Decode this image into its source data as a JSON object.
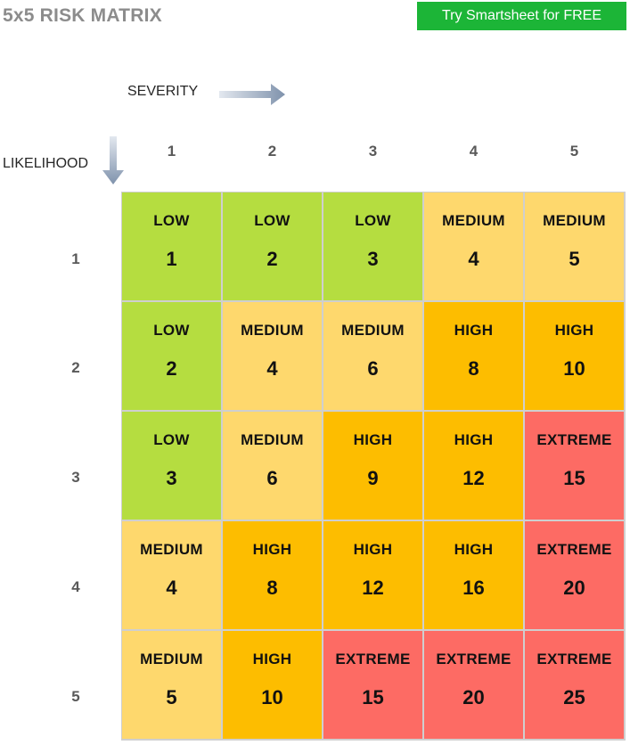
{
  "title": "5x5 RISK MATRIX",
  "cta_label": "Try Smartsheet for FREE",
  "severity_label": "SEVERITY",
  "likelihood_label": "LIKELIHOOD",
  "colors": {
    "LOW": "#b5dd40",
    "MEDIUM": "#fed86d",
    "HIGH": "#fdbd00",
    "EXTREME": "#fd6b64",
    "cta": "#1cb537",
    "arrow": "#7f92ac"
  },
  "severity_values": [
    "1",
    "2",
    "3",
    "4",
    "5"
  ],
  "likelihood_values": [
    "1",
    "2",
    "3",
    "4",
    "5"
  ],
  "matrix": [
    [
      {
        "level": "LOW",
        "score": "1"
      },
      {
        "level": "LOW",
        "score": "2"
      },
      {
        "level": "LOW",
        "score": "3"
      },
      {
        "level": "MEDIUM",
        "score": "4"
      },
      {
        "level": "MEDIUM",
        "score": "5"
      }
    ],
    [
      {
        "level": "LOW",
        "score": "2"
      },
      {
        "level": "MEDIUM",
        "score": "4"
      },
      {
        "level": "MEDIUM",
        "score": "6"
      },
      {
        "level": "HIGH",
        "score": "8"
      },
      {
        "level": "HIGH",
        "score": "10"
      }
    ],
    [
      {
        "level": "LOW",
        "score": "3"
      },
      {
        "level": "MEDIUM",
        "score": "6"
      },
      {
        "level": "HIGH",
        "score": "9"
      },
      {
        "level": "HIGH",
        "score": "12"
      },
      {
        "level": "EXTREME",
        "score": "15"
      }
    ],
    [
      {
        "level": "MEDIUM",
        "score": "4"
      },
      {
        "level": "HIGH",
        "score": "8"
      },
      {
        "level": "HIGH",
        "score": "12"
      },
      {
        "level": "HIGH",
        "score": "16"
      },
      {
        "level": "EXTREME",
        "score": "20"
      }
    ],
    [
      {
        "level": "MEDIUM",
        "score": "5"
      },
      {
        "level": "HIGH",
        "score": "10"
      },
      {
        "level": "EXTREME",
        "score": "15"
      },
      {
        "level": "EXTREME",
        "score": "20"
      },
      {
        "level": "EXTREME",
        "score": "25"
      }
    ]
  ]
}
